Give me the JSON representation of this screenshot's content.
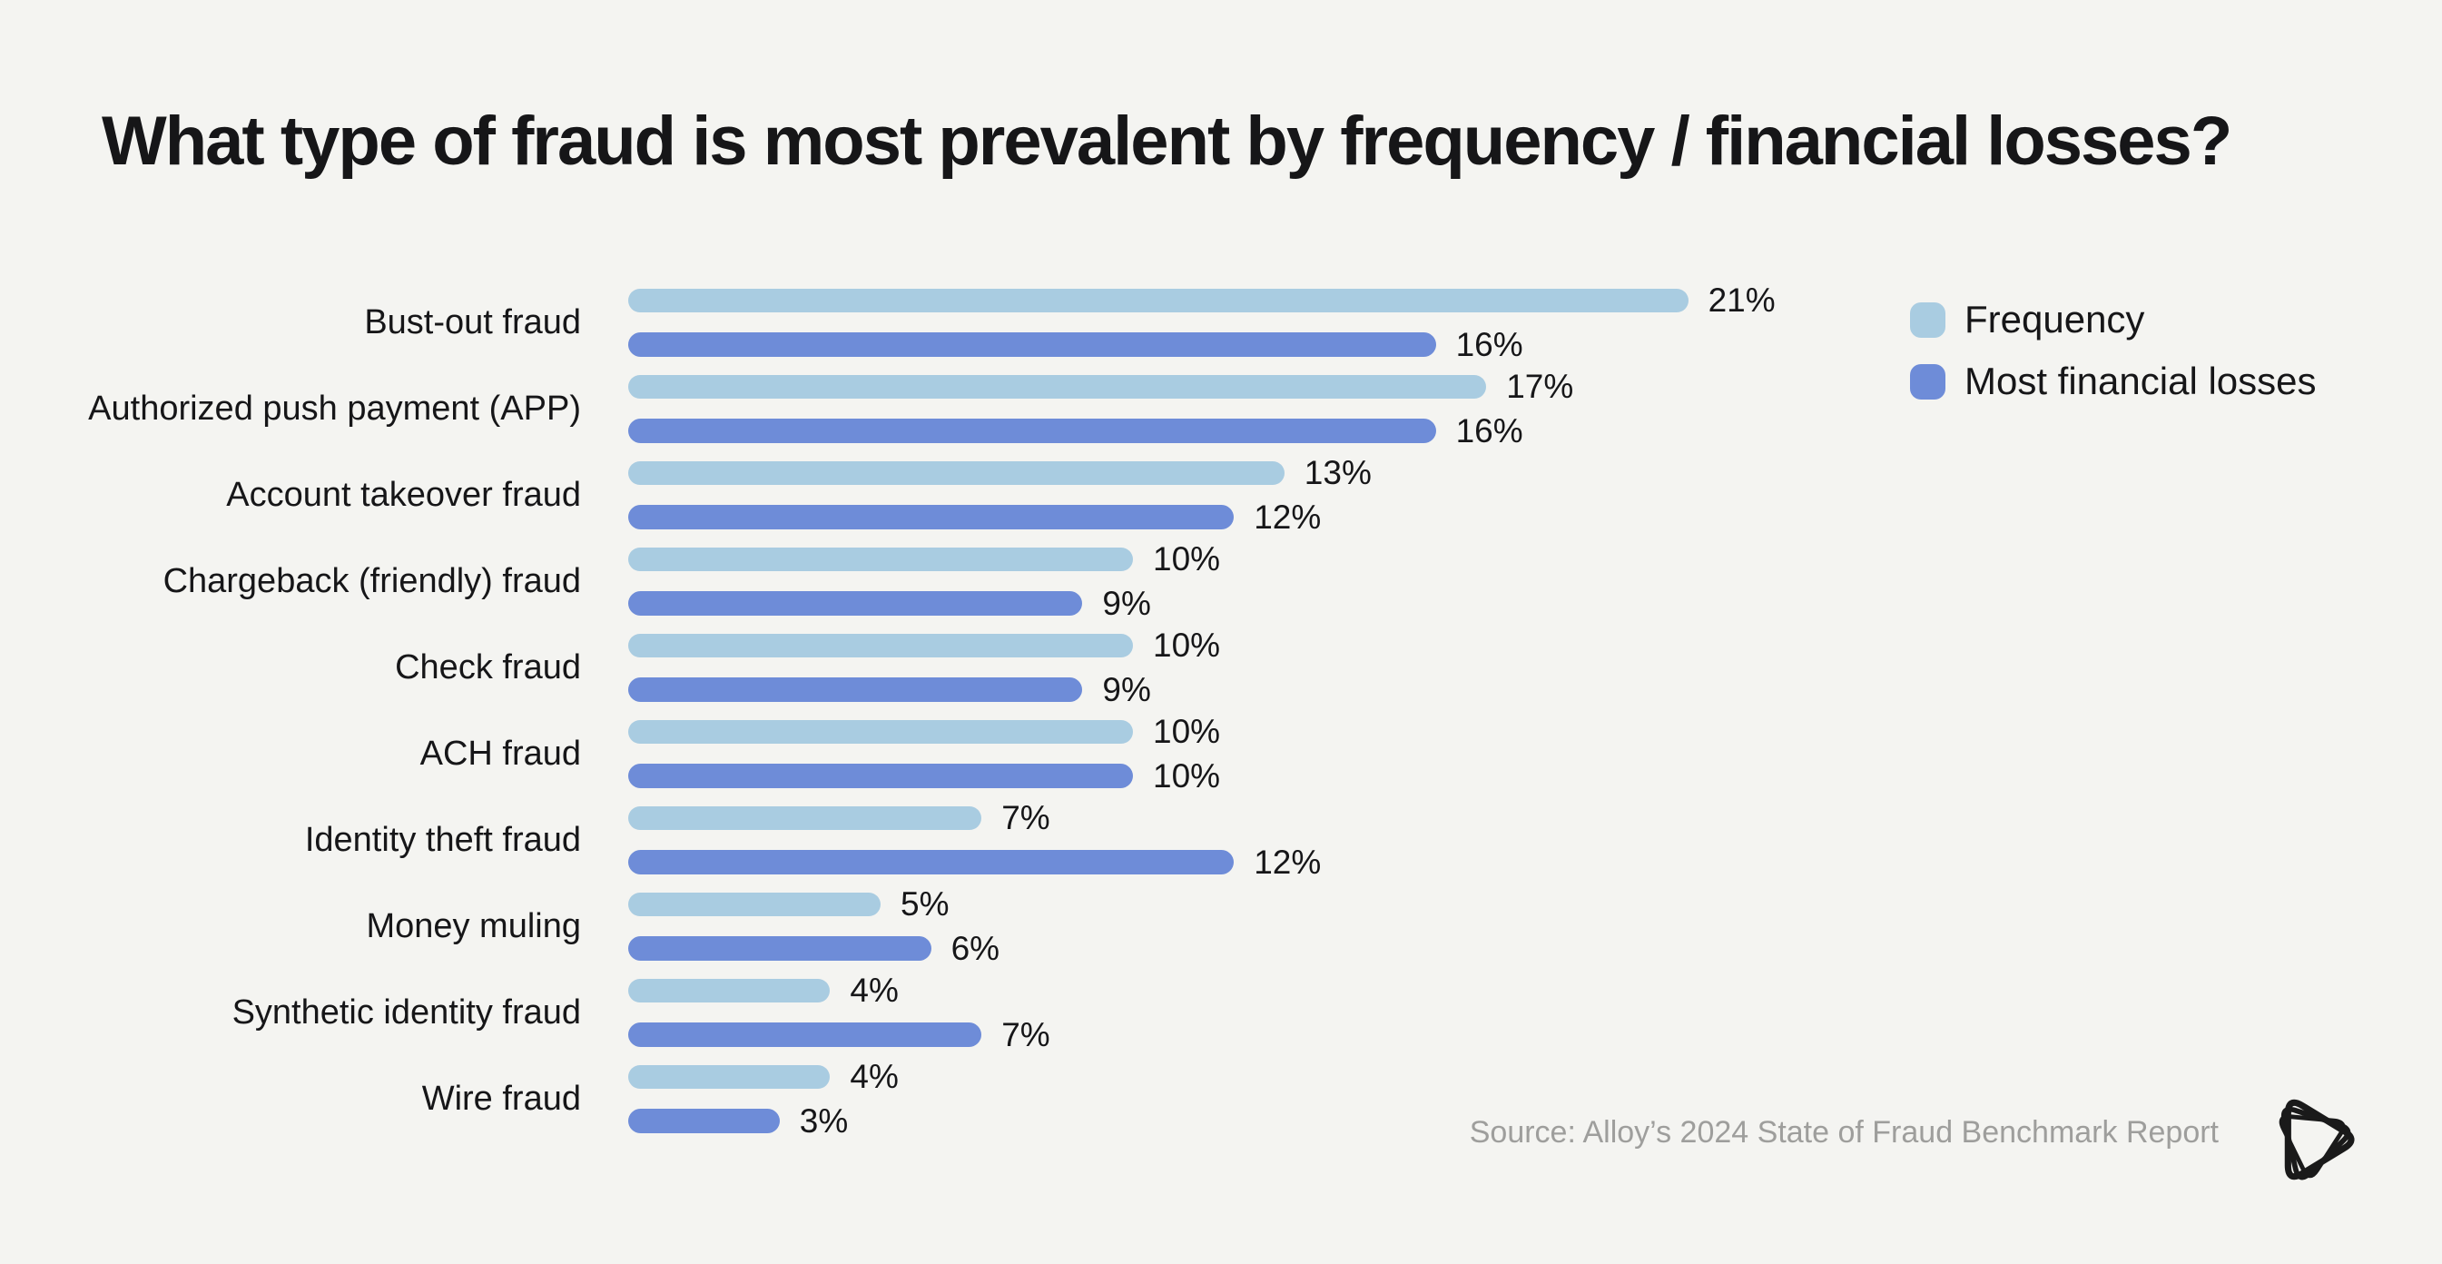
{
  "page": {
    "background": "#F4F4F1"
  },
  "title": "What type of fraud is most prevalent by frequency / financial losses?",
  "chart_data": {
    "type": "bar",
    "orientation": "horizontal",
    "title": "What type of fraud is most prevalent by frequency / financial losses?",
    "categories": [
      "Bust-out fraud",
      "Authorized push payment (APP)",
      "Account takeover fraud",
      "Chargeback (friendly) fraud",
      "Check fraud",
      "ACH fraud",
      "Identity theft fraud",
      "Money muling",
      "Synthetic identity fraud",
      "Wire fraud"
    ],
    "series": [
      {
        "name": "Frequency",
        "color": "#A9CCE1",
        "values": [
          21,
          17,
          13,
          10,
          10,
          10,
          7,
          5,
          4,
          4
        ]
      },
      {
        "name": "Most financial losses",
        "color": "#6E8CD8",
        "values": [
          16,
          16,
          12,
          9,
          9,
          10,
          12,
          6,
          7,
          3
        ]
      }
    ],
    "value_suffix": "%",
    "xlim": [
      0,
      21
    ],
    "grid": false,
    "legend_position": "top-right",
    "value_labels": "end-of-bar"
  },
  "source": {
    "text": "Source: Alloy’s 2024 State of Fraud Benchmark Report"
  },
  "logo": {
    "name": "alloy-logo",
    "color": "#1A1A1A"
  }
}
